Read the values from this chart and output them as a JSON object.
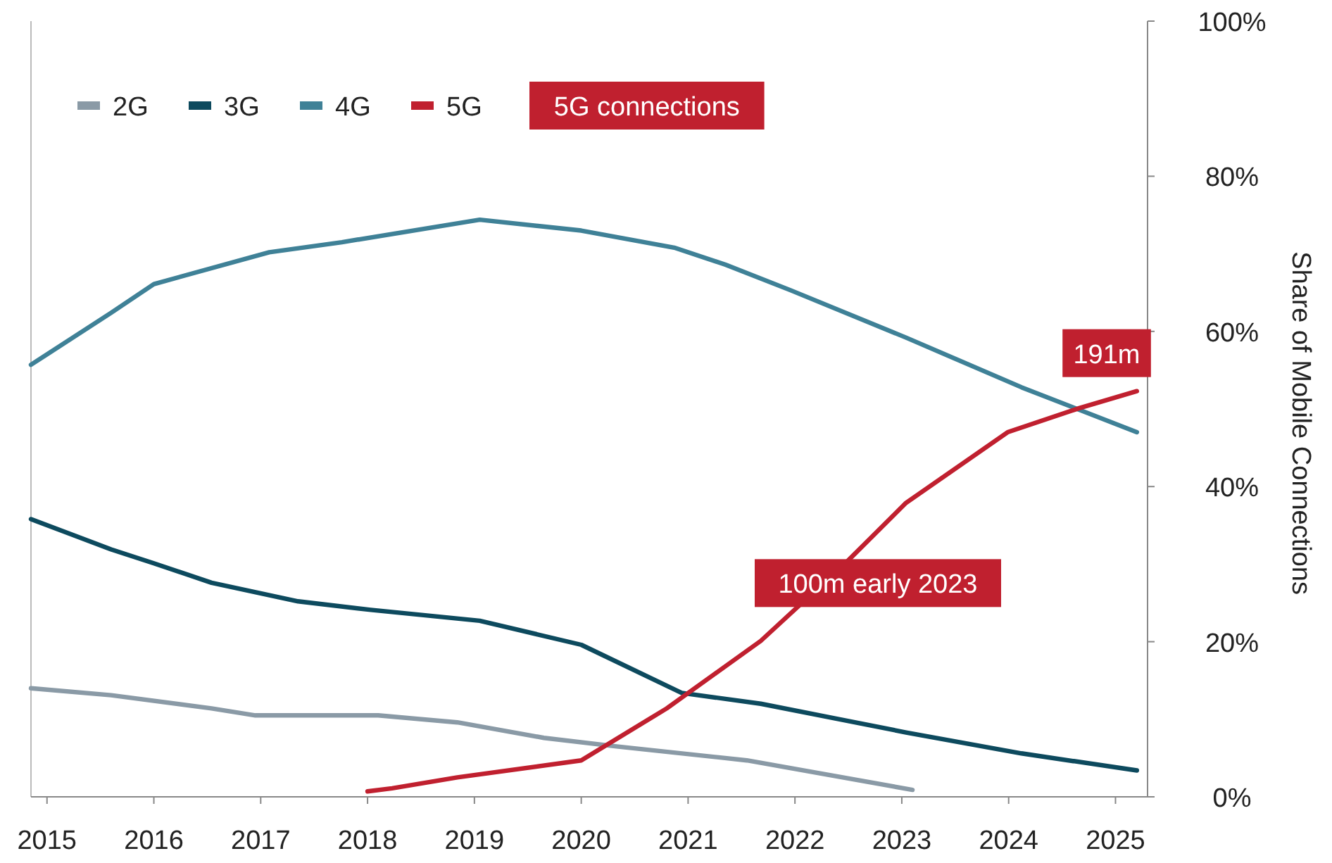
{
  "chart_data": {
    "type": "line",
    "ylabel": "Share of Mobile Connections",
    "xlim": [
      2014.85,
      2025.3
    ],
    "xticks": [
      2015,
      2016,
      2017,
      2018,
      2019,
      2020,
      2021,
      2022,
      2023,
      2024,
      2025
    ],
    "ylim": [
      0,
      100
    ],
    "yticks": [
      {
        "value": 0,
        "label": "0%"
      },
      {
        "value": 20,
        "label": "20%"
      },
      {
        "value": 40,
        "label": "40%"
      },
      {
        "value": 60,
        "label": "60%"
      },
      {
        "value": 80,
        "label": "80%"
      },
      {
        "value": 100,
        "label": "100%"
      }
    ],
    "grid": false,
    "legend": "top left",
    "marker": "none",
    "line_style": "solid",
    "series": [
      {
        "name": "2G",
        "color": "#8a9aa6",
        "x": [
          2014.85,
          2015.6,
          2016.54,
          2016.95,
          2018.1,
          2018.84,
          2019.65,
          2020.33,
          2021.55,
          2023.1
        ],
        "values": [
          14.0,
          13.1,
          11.4,
          10.5,
          10.5,
          9.6,
          7.6,
          6.5,
          4.7,
          0.9
        ]
      },
      {
        "name": "3G",
        "color": "#0d4a5e",
        "x": [
          2014.85,
          2015.6,
          2016.0,
          2016.54,
          2017.35,
          2018.03,
          2019.05,
          2020.0,
          2020.94,
          2021.68,
          2023.04,
          2024.12,
          2025.2
        ],
        "values": [
          35.8,
          31.9,
          30.1,
          27.6,
          25.2,
          24.1,
          22.7,
          19.6,
          13.4,
          12.0,
          8.3,
          5.6,
          3.4
        ]
      },
      {
        "name": "4G",
        "color": "#3f8197",
        "x": [
          2014.85,
          2015.6,
          2016.0,
          2017.08,
          2017.76,
          2019.05,
          2020.0,
          2020.87,
          2021.35,
          2021.96,
          2023.04,
          2024.12,
          2025.2
        ],
        "values": [
          55.7,
          62.4,
          66.1,
          70.2,
          71.5,
          74.4,
          73.0,
          70.8,
          68.6,
          65.3,
          59.2,
          52.8,
          47.0
        ]
      },
      {
        "name": "5G",
        "color": "#c0202f",
        "x": [
          2018.0,
          2018.23,
          2018.84,
          2020.0,
          2020.8,
          2021.68,
          2022.5,
          2023.04,
          2023.99,
          2024.66,
          2025.2
        ],
        "values": [
          0.7,
          1.1,
          2.5,
          4.7,
          11.4,
          20.1,
          30.5,
          37.9,
          47.0,
          50.1,
          52.3
        ]
      }
    ],
    "annotations": [
      "5G connections",
      {
        "text": "191m",
        "x": 2025.2,
        "y": 52.3
      },
      {
        "text": "100m early 2023",
        "x": 2023.04,
        "y": 37.9
      }
    ]
  }
}
